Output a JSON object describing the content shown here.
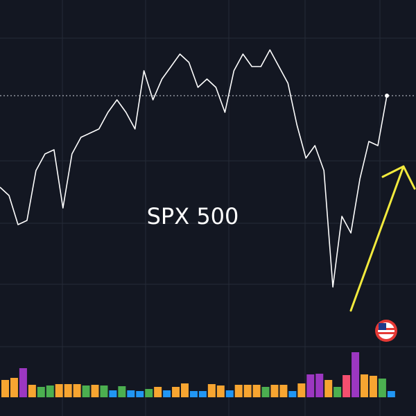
{
  "chart_data": [
    {
      "type": "line",
      "title": "SPX 500",
      "categories": [
        null,
        null,
        null,
        null,
        null,
        null,
        null,
        null,
        null,
        null,
        null,
        null,
        null,
        null,
        null,
        null,
        null,
        null,
        null,
        null,
        null,
        null,
        null,
        null,
        null,
        null,
        null,
        null,
        null,
        null,
        null,
        null,
        null,
        null,
        null,
        null,
        null,
        null,
        null,
        null,
        null,
        null,
        null,
        null
      ],
      "series": [
        {
          "color": "#ffffff",
          "values": [
            55,
            53,
            46,
            47,
            59,
            63,
            64,
            50,
            63,
            67,
            68,
            69,
            73,
            76,
            73,
            69,
            83,
            76,
            81,
            84,
            87,
            85,
            79,
            81,
            79,
            73,
            83,
            87,
            84,
            84,
            88,
            84,
            80,
            70,
            62,
            65,
            59,
            31,
            48,
            44,
            57,
            66,
            65,
            77
          ]
        }
      ],
      "ylim": [
        0,
        100
      ]
    },
    {
      "type": "bar",
      "categories": [
        null,
        null,
        null,
        null,
        null,
        null,
        null,
        null,
        null,
        null,
        null,
        null,
        null,
        null,
        null,
        null,
        null,
        null,
        null,
        null,
        null,
        null,
        null,
        null,
        null,
        null,
        null,
        null,
        null,
        null,
        null,
        null,
        null,
        null,
        null,
        null,
        null,
        null,
        null,
        null,
        null,
        null,
        null,
        null
      ],
      "values": [
        25,
        28,
        42,
        18,
        15,
        17,
        19,
        19,
        19,
        17,
        18,
        17,
        10,
        16,
        10,
        9,
        12,
        15,
        10,
        15,
        20,
        9,
        9,
        19,
        17,
        10,
        18,
        18,
        18,
        15,
        18,
        18,
        9,
        20,
        33,
        34,
        25,
        15,
        32,
        65,
        33,
        31,
        27,
        9
      ],
      "colors": [
        "#f7a531",
        "#f7a531",
        "#9c37c1",
        "#f7a531",
        "#4caf50",
        "#4caf50",
        "#f7a531",
        "#f7a531",
        "#f7a531",
        "#4caf50",
        "#f7a531",
        "#4caf50",
        "#2196f3",
        "#4caf50",
        "#2196f3",
        "#2196f3",
        "#4caf50",
        "#f7a531",
        "#2196f3",
        "#f7a531",
        "#f7a531",
        "#2196f3",
        "#2196f3",
        "#f7a531",
        "#f7a531",
        "#2196f3",
        "#f7a531",
        "#f7a531",
        "#f7a531",
        "#4caf50",
        "#f7a531",
        "#f7a531",
        "#2196f3",
        "#f7a531",
        "#9c37c1",
        "#9c37c1",
        "#f7a531",
        "#4caf50",
        "#f44f6f",
        "#9c37c1",
        "#f7a531",
        "#f7a531",
        "#4caf50",
        "#2196f3"
      ],
      "ylim": [
        0,
        70
      ]
    }
  ]
}
